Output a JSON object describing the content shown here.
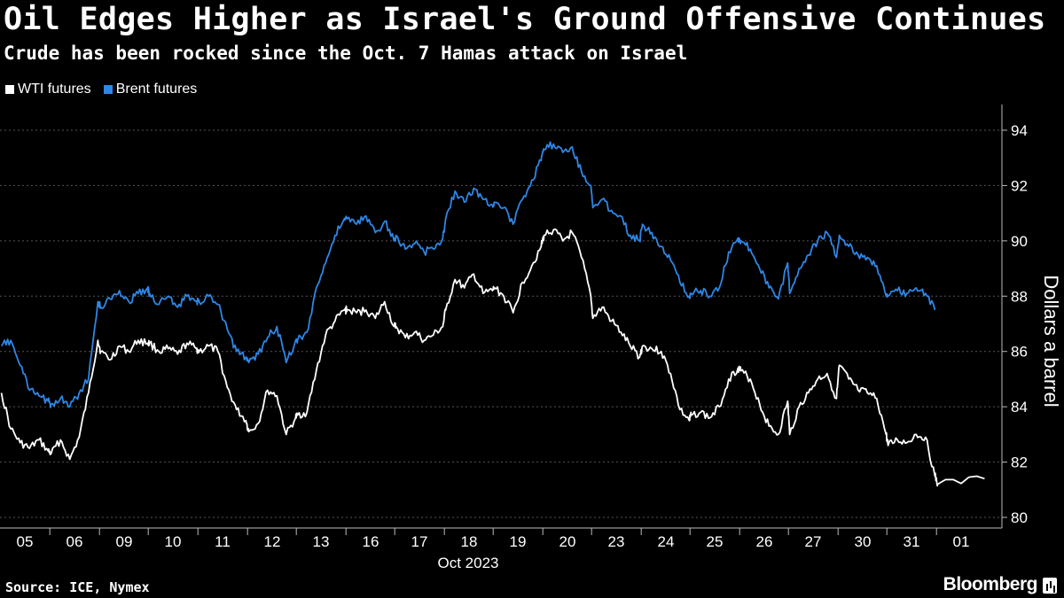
{
  "header": {
    "title": "Oil Edges Higher as Israel's Ground Offensive Continues",
    "subtitle": "Crude has been rocked since the Oct. 7 Hamas attack on Israel"
  },
  "footer": {
    "source": "Source: ICE, Nymex",
    "brand": "Bloomberg"
  },
  "chart_data": {
    "type": "line",
    "title": "Oil Edges Higher as Israel's Ground Offensive Continues",
    "subtitle": "Crude has been rocked since the Oct. 7 Hamas attack on Israel",
    "ylabel": "Dollars a barrel",
    "xlabel": "Oct 2023",
    "ylim": [
      80,
      95
    ],
    "yticks": [
      80,
      82,
      84,
      86,
      88,
      90,
      92,
      94
    ],
    "x_tick_labels": [
      "05",
      "06",
      "09",
      "10",
      "11",
      "12",
      "13",
      "16",
      "17",
      "18",
      "19",
      "20",
      "23",
      "24",
      "25",
      "26",
      "27",
      "30",
      "31",
      "01"
    ],
    "x_group_label": "Oct 2023",
    "grid": true,
    "legend_position": "top-left",
    "colors": {
      "wti": "#ffffff",
      "brent": "#2f86e5"
    },
    "series": [
      {
        "name": "WTI futures",
        "color": "#ffffff",
        "days": [
          "05",
          "06",
          "09",
          "10",
          "11",
          "12",
          "13",
          "16",
          "17",
          "18",
          "19",
          "20",
          "23",
          "24",
          "25",
          "26",
          "27",
          "30",
          "31",
          "01"
        ],
        "values": [
          [
            84.5,
            83.2,
            82.7,
            82.5,
            82.8,
            82.4
          ],
          [
            82.3,
            82.8,
            82.1,
            82.9,
            84.5,
            86.4
          ],
          [
            86.0,
            85.7,
            86.2,
            86.0,
            86.4,
            86.3
          ],
          [
            86.3,
            86.0,
            86.1,
            85.9,
            86.3,
            86.1
          ],
          [
            86.0,
            86.2,
            86.0,
            84.7,
            83.9,
            83.5
          ],
          [
            83.1,
            83.4,
            84.6,
            84.4,
            83.0,
            83.6
          ],
          [
            83.7,
            83.8,
            85.3,
            86.6,
            87.1,
            87.5
          ],
          [
            87.5,
            87.4,
            87.5,
            87.2,
            87.8,
            86.9
          ],
          [
            86.9,
            86.5,
            86.7,
            86.4,
            86.6,
            86.9
          ],
          [
            87.5,
            88.6,
            88.3,
            88.8,
            88.1,
            88.2
          ],
          [
            88.3,
            88.0,
            87.4,
            88.5,
            89.1,
            89.8
          ],
          [
            90.2,
            90.4,
            90.0,
            90.3,
            89.4,
            88.0
          ],
          [
            87.2,
            87.6,
            87.1,
            86.7,
            86.2,
            85.8
          ],
          [
            86.2,
            86.1,
            86.0,
            85.2,
            83.9,
            83.5
          ],
          [
            83.7,
            83.8,
            83.6,
            84.0,
            85.0,
            85.4
          ],
          [
            85.3,
            85.0,
            84.1,
            83.3,
            83.0,
            84.2
          ],
          [
            83.0,
            84.0,
            84.5,
            85.0,
            85.2,
            84.3
          ],
          [
            85.5,
            85.0,
            84.6,
            84.5,
            84.3,
            83.0
          ],
          [
            82.6,
            82.8,
            82.7,
            83.0,
            82.9,
            81.5
          ],
          [
            81.2,
            81.4
          ]
        ]
      },
      {
        "name": "Brent futures",
        "color": "#2f86e5",
        "days": [
          "05",
          "06",
          "09",
          "10",
          "11",
          "12",
          "13",
          "16",
          "17",
          "18",
          "19",
          "20",
          "23",
          "24",
          "25",
          "26",
          "27",
          "30",
          "31",
          "01"
        ],
        "values": [
          [
            86.2,
            86.4,
            85.5,
            84.6,
            84.4,
            84.2
          ],
          [
            84.1,
            84.3,
            84.0,
            84.5,
            85.0,
            87.8
          ],
          [
            87.6,
            87.9,
            88.2,
            87.8,
            88.1,
            88.3
          ],
          [
            88.1,
            87.7,
            88.0,
            87.6,
            88.0,
            87.8
          ],
          [
            87.8,
            88.0,
            87.7,
            86.8,
            86.0,
            85.8
          ],
          [
            85.6,
            85.9,
            86.5,
            86.9,
            85.6,
            86.4
          ],
          [
            86.4,
            86.7,
            88.3,
            89.2,
            90.2,
            90.8
          ],
          [
            90.8,
            90.6,
            90.9,
            90.3,
            90.7,
            90.0
          ],
          [
            90.2,
            89.7,
            89.9,
            89.6,
            89.7,
            90.1
          ],
          [
            90.8,
            91.8,
            91.4,
            91.9,
            91.5,
            91.3
          ],
          [
            91.4,
            91.2,
            90.6,
            91.5,
            92.2,
            92.9
          ],
          [
            93.3,
            93.5,
            93.2,
            93.4,
            92.5,
            92.0
          ],
          [
            91.2,
            91.5,
            91.1,
            90.9,
            90.2,
            90.0
          ],
          [
            90.6,
            90.3,
            89.8,
            89.3,
            88.5,
            88.0
          ],
          [
            88.1,
            88.2,
            88.0,
            88.3,
            89.6,
            90.1
          ],
          [
            90.0,
            89.7,
            89.0,
            88.3,
            87.9,
            89.2
          ],
          [
            88.1,
            89.0,
            89.5,
            90.0,
            90.3,
            89.4
          ],
          [
            90.2,
            89.8,
            89.5,
            89.4,
            89.1,
            88.0
          ],
          [
            88.0,
            88.2,
            88.1,
            88.3,
            88.1,
            87.5
          ],
          []
        ]
      }
    ]
  }
}
